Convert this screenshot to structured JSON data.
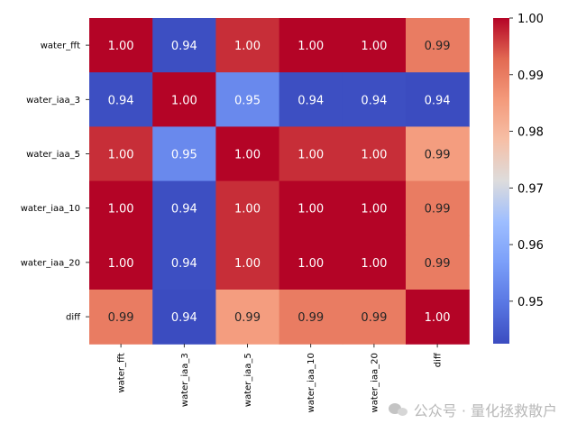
{
  "chart_data": {
    "type": "heatmap",
    "title": "",
    "xlabel": "",
    "ylabel": "",
    "row_labels": [
      "water_fft",
      "water_iaa_3",
      "water_iaa_5",
      "water_iaa_10",
      "water_iaa_20",
      "diff"
    ],
    "col_labels": [
      "water_fft",
      "water_iaa_3",
      "water_iaa_5",
      "water_iaa_10",
      "water_iaa_20",
      "diff"
    ],
    "values": [
      [
        1.0,
        0.943,
        0.997,
        1.0,
        1.0,
        0.99
      ],
      [
        0.943,
        1.0,
        0.953,
        0.943,
        0.943,
        0.942
      ],
      [
        0.997,
        0.953,
        1.0,
        0.997,
        0.997,
        0.985
      ],
      [
        1.0,
        0.943,
        0.997,
        1.0,
        1.0,
        0.99
      ],
      [
        1.0,
        0.943,
        0.997,
        1.0,
        1.0,
        0.99
      ],
      [
        0.99,
        0.942,
        0.985,
        0.99,
        0.99,
        1.0
      ]
    ],
    "annotations": [
      [
        "1.00",
        "0.94",
        "1.00",
        "1.00",
        "1.00",
        "0.99"
      ],
      [
        "0.94",
        "1.00",
        "0.95",
        "0.94",
        "0.94",
        "0.94"
      ],
      [
        "1.00",
        "0.95",
        "1.00",
        "1.00",
        "1.00",
        "0.99"
      ],
      [
        "1.00",
        "0.94",
        "1.00",
        "1.00",
        "1.00",
        "0.99"
      ],
      [
        "1.00",
        "0.94",
        "1.00",
        "1.00",
        "1.00",
        "0.99"
      ],
      [
        "0.99",
        "0.94",
        "0.99",
        "0.99",
        "0.99",
        "1.00"
      ]
    ],
    "colormap": "coolwarm",
    "vmin": 0.9425,
    "vmax": 1.0,
    "colorbar": {
      "ticks": [
        0.95,
        0.96,
        0.97,
        0.98,
        0.99,
        1.0
      ],
      "tick_labels": [
        "0.95",
        "0.96",
        "0.97",
        "0.98",
        "0.99",
        "1.00"
      ]
    }
  },
  "watermark": {
    "text": "公众号 · 量化拯救散户",
    "icon": "wechat-icon"
  }
}
